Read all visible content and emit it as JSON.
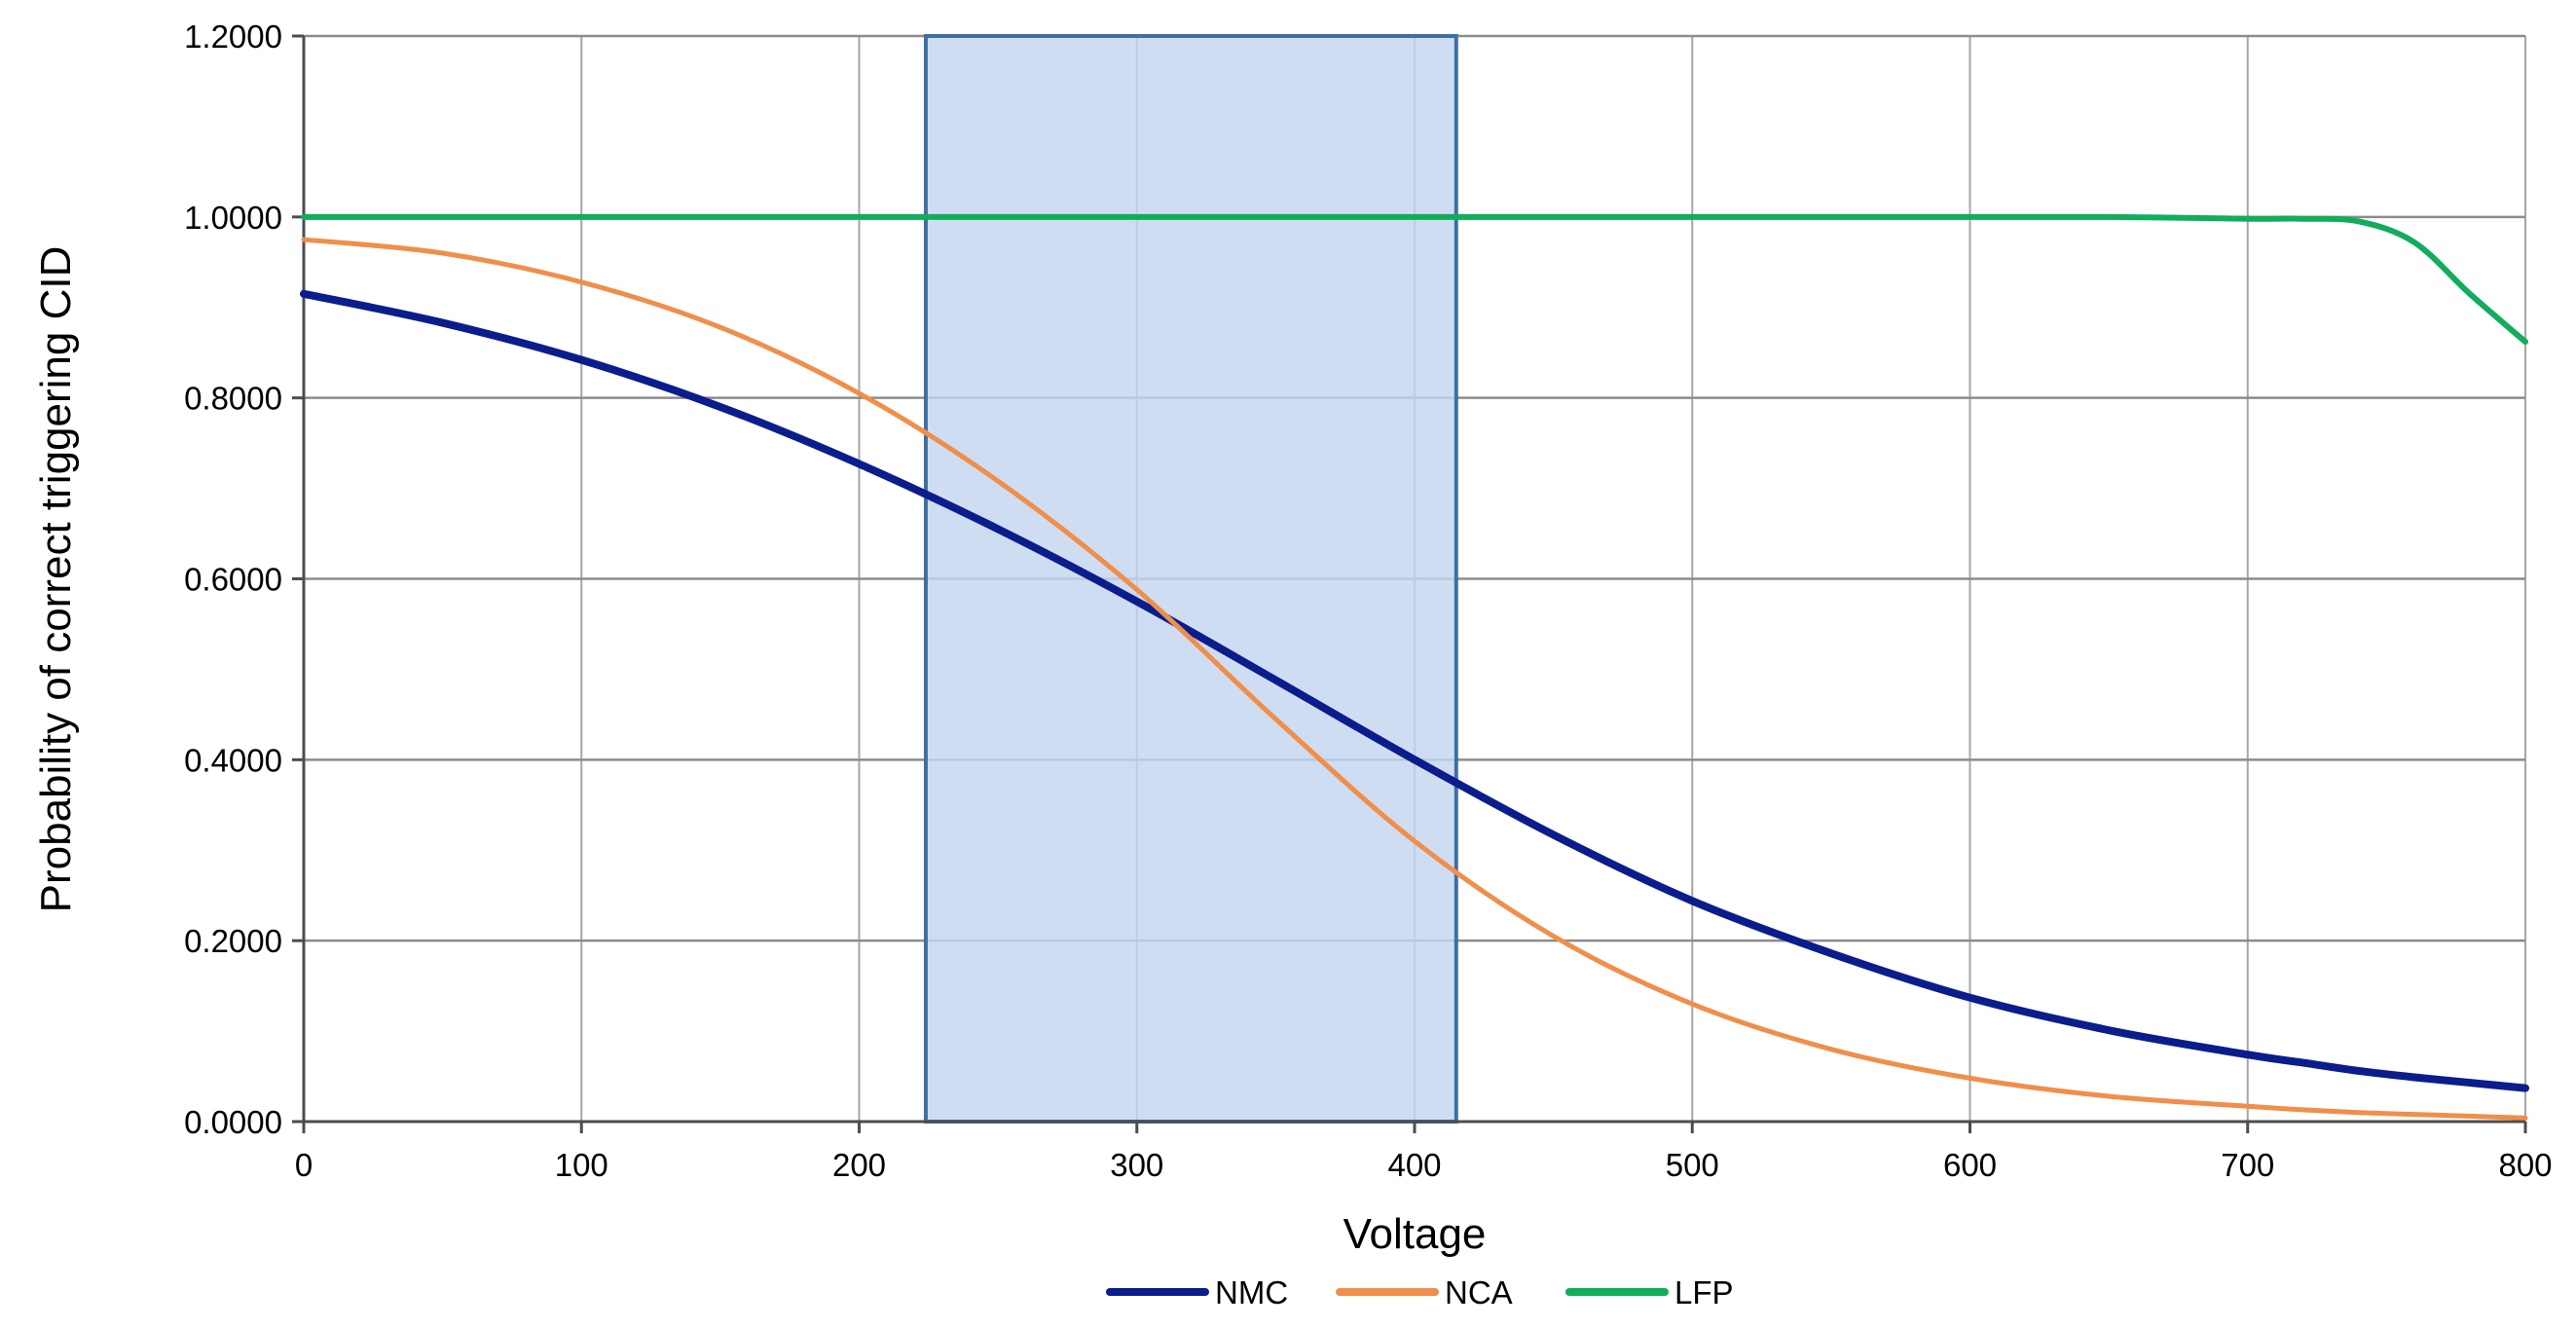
{
  "chart_data": {
    "type": "line",
    "title": "",
    "xlabel": "Voltage",
    "ylabel": "Probability of correct triggering CID",
    "xlim": [
      0,
      800
    ],
    "ylim": [
      0,
      1.2
    ],
    "x_ticks": [
      0,
      100,
      200,
      300,
      400,
      500,
      600,
      700,
      800
    ],
    "x_tick_labels": [
      "0",
      "100",
      "200",
      "300",
      "400",
      "500",
      "600",
      "700",
      "800"
    ],
    "y_ticks": [
      0,
      0.2,
      0.4,
      0.6,
      0.8,
      1.0,
      1.2
    ],
    "y_tick_labels": [
      "0.0000",
      "0.2000",
      "0.4000",
      "0.6000",
      "0.8000",
      "1.0000",
      "1.2000"
    ],
    "grid": true,
    "legend_position": "bottom",
    "highlight_region": {
      "x_start": 224,
      "x_end": 415,
      "color": "#c5d5ef",
      "edge_color": "#3f6fa2"
    },
    "x": [
      0,
      50,
      100,
      150,
      200,
      250,
      300,
      350,
      400,
      450,
      500,
      550,
      600,
      650,
      700,
      720,
      740,
      760,
      780,
      800
    ],
    "series": [
      {
        "name": "NMC",
        "color": "#0b1d8c",
        "values": [
          0.915,
          0.883,
          0.842,
          0.79,
          0.727,
          0.655,
          0.575,
          0.488,
          0.4,
          0.317,
          0.244,
          0.186,
          0.137,
          0.101,
          0.074,
          0.065,
          0.056,
          0.049,
          0.043,
          0.037
        ]
      },
      {
        "name": "NCA",
        "color": "#f08e4a",
        "values": [
          0.975,
          0.96,
          0.928,
          0.878,
          0.805,
          0.708,
          0.588,
          0.445,
          0.31,
          0.205,
          0.13,
          0.08,
          0.048,
          0.028,
          0.017,
          0.013,
          0.01,
          0.008,
          0.006,
          0.004
        ]
      },
      {
        "name": "LFP",
        "color": "#11ad5c",
        "values": [
          1.0,
          1.0,
          1.0,
          1.0,
          1.0,
          1.0,
          1.0,
          1.0,
          1.0,
          1.0,
          1.0,
          1.0,
          1.0,
          1.0,
          0.998,
          0.998,
          0.995,
          0.972,
          0.915,
          0.862
        ]
      }
    ]
  }
}
